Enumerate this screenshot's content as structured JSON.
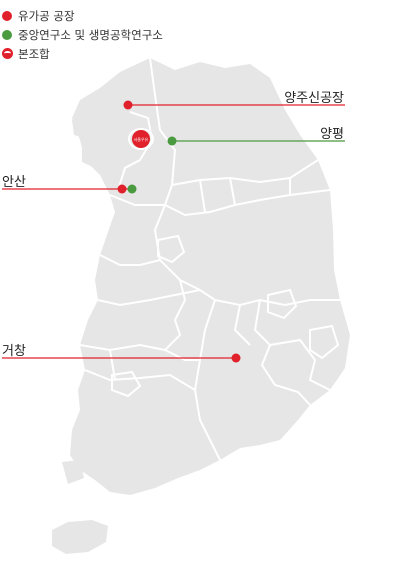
{
  "legend": {
    "factory": {
      "label": "유가공 공장",
      "color": "#e0202a"
    },
    "research": {
      "label": "중앙연구소 및 생명공학연구소",
      "color": "#4a9a3f"
    },
    "hq": {
      "label": "본조합",
      "color": "#e0202a"
    }
  },
  "hq_marker": {
    "text": "서울우유"
  },
  "sites": [
    {
      "id": "yangju",
      "label": "양주신공장",
      "type": "factory"
    },
    {
      "id": "yangpyeong",
      "label": "양평",
      "type": "research"
    },
    {
      "id": "ansan",
      "label": "안산",
      "type": "factory+research"
    },
    {
      "id": "geochang",
      "label": "거창",
      "type": "factory"
    }
  ],
  "colors": {
    "land": "#e6e6e6",
    "border": "#ffffff",
    "factory": "#e0202a",
    "research": "#4a9a3f"
  }
}
